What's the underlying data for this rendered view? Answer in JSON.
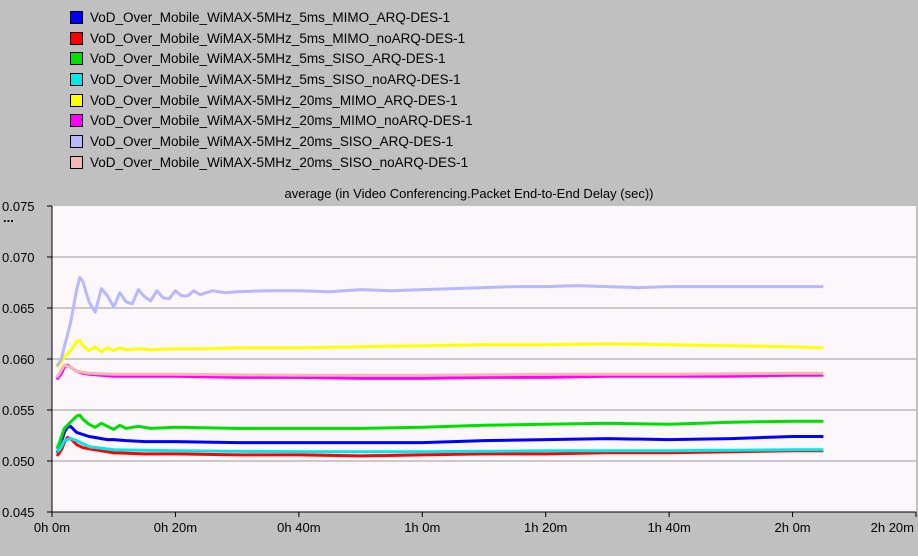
{
  "chart_data": {
    "type": "line",
    "title": "average (in Video Conferencing.Packet End-to-End Delay (sec))",
    "ylim": [
      0.045,
      0.075
    ],
    "xlim_minutes": [
      0,
      140
    ],
    "y_ticks": [
      "0.045",
      "0.050",
      "0.055",
      "0.060",
      "0.065",
      "0.070",
      "0.075"
    ],
    "y_tick_values": [
      0.045,
      0.05,
      0.055,
      0.06,
      0.065,
      0.07,
      0.075
    ],
    "x_ticks": [
      "0h 0m",
      "0h 20m",
      "0h 40m",
      "1h 0m",
      "1h 20m",
      "1h 40m",
      "2h 0m",
      "2h 20m"
    ],
    "x_tick_minutes": [
      0,
      20,
      40,
      60,
      80,
      100,
      120,
      140
    ],
    "y_axis_overflow_mark": "...",
    "grid": true,
    "legend_position": "top",
    "plot_background": "#fbf7fb",
    "series": [
      {
        "name": "VoD_Over_Mobile_WiMAX-5MHz_5ms_MIMO_ARQ-DES-1",
        "color": "#0000ff",
        "x": [
          0.8,
          1.2,
          1.6,
          2,
          2.5,
          3,
          3.5,
          4,
          5,
          6,
          7,
          8,
          9,
          10,
          12,
          15,
          20,
          30,
          40,
          50,
          60,
          70,
          80,
          90,
          100,
          110,
          120,
          125
        ],
        "y": [
          0.0508,
          0.0512,
          0.052,
          0.0528,
          0.0533,
          0.0534,
          0.0531,
          0.0528,
          0.0526,
          0.0524,
          0.0523,
          0.0522,
          0.0521,
          0.0521,
          0.052,
          0.0519,
          0.0519,
          0.0518,
          0.0518,
          0.0518,
          0.0518,
          0.052,
          0.0521,
          0.0522,
          0.0521,
          0.0522,
          0.0524,
          0.0524
        ]
      },
      {
        "name": "VoD_Over_Mobile_WiMAX-5MHz_5ms_MIMO_noARQ-DES-1",
        "color": "#ff0000",
        "x": [
          0.8,
          1.2,
          1.6,
          2,
          2.5,
          3,
          3.5,
          4,
          5,
          6,
          8,
          10,
          15,
          20,
          30,
          40,
          50,
          60,
          70,
          80,
          90,
          100,
          110,
          120,
          125
        ],
        "y": [
          0.0505,
          0.0508,
          0.0512,
          0.0518,
          0.0523,
          0.0522,
          0.0519,
          0.0516,
          0.0513,
          0.0512,
          0.051,
          0.0508,
          0.0507,
          0.0507,
          0.0506,
          0.0506,
          0.0505,
          0.0506,
          0.0507,
          0.0507,
          0.0508,
          0.0508,
          0.0509,
          0.051,
          0.051
        ]
      },
      {
        "name": "VoD_Over_Mobile_WiMAX-5MHz_5ms_SISO_ARQ-DES-1",
        "color": "#00e000",
        "x": [
          0.8,
          1.2,
          1.6,
          2,
          3,
          4,
          4.5,
          5,
          6,
          7,
          8,
          9,
          10,
          11,
          12,
          14,
          16,
          20,
          30,
          40,
          50,
          60,
          70,
          80,
          90,
          100,
          110,
          120,
          125
        ],
        "y": [
          0.0512,
          0.0518,
          0.0525,
          0.0532,
          0.0538,
          0.0544,
          0.0545,
          0.0541,
          0.0536,
          0.0533,
          0.0537,
          0.0534,
          0.0531,
          0.0535,
          0.0532,
          0.0534,
          0.0532,
          0.0533,
          0.0532,
          0.0532,
          0.0532,
          0.0533,
          0.0535,
          0.0536,
          0.0537,
          0.0536,
          0.0538,
          0.0539,
          0.0539
        ]
      },
      {
        "name": "VoD_Over_Mobile_WiMAX-5MHz_5ms_SISO_noARQ-DES-1",
        "color": "#00e8e8",
        "x": [
          0.8,
          1.2,
          1.6,
          2,
          3,
          4,
          6,
          10,
          20,
          40,
          60,
          80,
          100,
          120,
          125
        ],
        "y": [
          0.0509,
          0.0511,
          0.0515,
          0.052,
          0.0522,
          0.052,
          0.0514,
          0.0511,
          0.051,
          0.0509,
          0.0509,
          0.051,
          0.051,
          0.0511,
          0.0511
        ]
      },
      {
        "name": "VoD_Over_Mobile_WiMAX-5MHz_20ms_MIMO_ARQ-DES-1",
        "color": "#ffff00",
        "x": [
          0.8,
          1.5,
          2,
          3,
          4,
          4.5,
          5,
          6,
          7,
          8,
          9,
          10,
          11,
          12,
          14,
          16,
          20,
          25,
          30,
          40,
          50,
          60,
          70,
          80,
          90,
          100,
          110,
          120,
          125
        ],
        "y": [
          0.0592,
          0.0597,
          0.0602,
          0.0608,
          0.0617,
          0.0618,
          0.0613,
          0.0608,
          0.0612,
          0.0607,
          0.0611,
          0.0608,
          0.0611,
          0.0609,
          0.061,
          0.0609,
          0.061,
          0.061,
          0.0611,
          0.0611,
          0.0612,
          0.0613,
          0.0614,
          0.0614,
          0.0615,
          0.0614,
          0.0613,
          0.0612,
          0.0611
        ]
      },
      {
        "name": "VoD_Over_Mobile_WiMAX-5MHz_20ms_MIMO_noARQ-DES-1",
        "color": "#ff00ff",
        "x": [
          0.8,
          1.2,
          1.6,
          2,
          2.5,
          3,
          4,
          5,
          6,
          8,
          10,
          15,
          20,
          30,
          40,
          50,
          60,
          70,
          80,
          90,
          100,
          110,
          120,
          125
        ],
        "y": [
          0.058,
          0.0583,
          0.0587,
          0.0592,
          0.0594,
          0.0592,
          0.0588,
          0.0586,
          0.0585,
          0.0584,
          0.0583,
          0.0583,
          0.0583,
          0.0582,
          0.0582,
          0.0581,
          0.0581,
          0.0582,
          0.0582,
          0.0583,
          0.0583,
          0.0583,
          0.0584,
          0.0584
        ]
      },
      {
        "name": "VoD_Over_Mobile_WiMAX-5MHz_20ms_SISO_ARQ-DES-1",
        "color": "#b8b8ff",
        "x": [
          0.8,
          1.5,
          2,
          3,
          4,
          4.5,
          5,
          6,
          7,
          8,
          9,
          10,
          11,
          12,
          13,
          14,
          15,
          16,
          17,
          18,
          19,
          20,
          21,
          22,
          23,
          24,
          25,
          26,
          28,
          30,
          35,
          40,
          45,
          50,
          55,
          60,
          65,
          70,
          75,
          80,
          85,
          90,
          95,
          100,
          110,
          120,
          125
        ],
        "y": [
          0.0593,
          0.06,
          0.0612,
          0.0635,
          0.0668,
          0.068,
          0.0676,
          0.0656,
          0.0646,
          0.0669,
          0.0662,
          0.0651,
          0.0665,
          0.0656,
          0.0654,
          0.0668,
          0.0661,
          0.0657,
          0.0667,
          0.066,
          0.0659,
          0.0667,
          0.0662,
          0.0662,
          0.0667,
          0.0663,
          0.0665,
          0.0667,
          0.0665,
          0.0666,
          0.0667,
          0.0667,
          0.0666,
          0.0668,
          0.0667,
          0.0668,
          0.0669,
          0.067,
          0.0671,
          0.0671,
          0.0672,
          0.0671,
          0.067,
          0.0671,
          0.0671,
          0.0671,
          0.0671
        ]
      },
      {
        "name": "VoD_Over_Mobile_WiMAX-5MHz_20ms_SISO_noARQ-DES-1",
        "color": "#f5b8b0",
        "x": [
          0.8,
          1.2,
          1.6,
          2,
          3,
          4,
          6,
          10,
          20,
          40,
          60,
          80,
          100,
          120,
          125
        ],
        "y": [
          0.0582,
          0.0586,
          0.059,
          0.0594,
          0.0592,
          0.0588,
          0.0586,
          0.0585,
          0.0585,
          0.0584,
          0.0584,
          0.0585,
          0.0585,
          0.0586,
          0.0586
        ]
      }
    ]
  }
}
